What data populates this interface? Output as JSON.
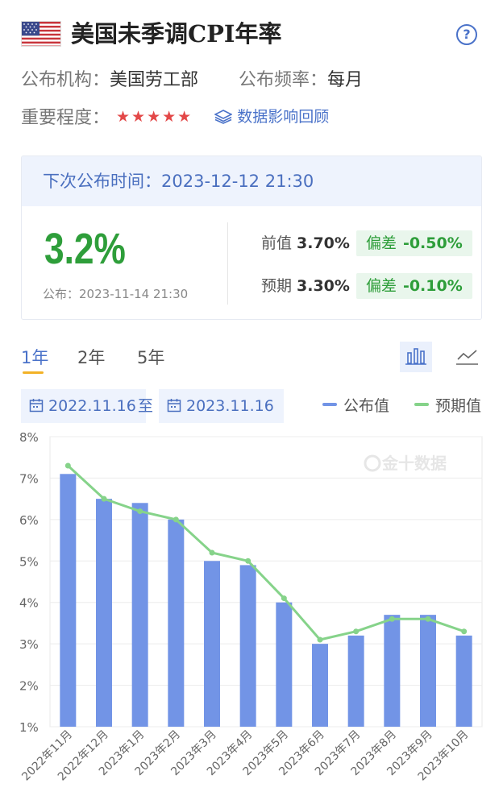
{
  "header": {
    "title": "美国未季调CPI年率",
    "help_icon": "question-circle-icon",
    "flag_icon": "us-flag-icon"
  },
  "info": {
    "publisher_label": "公布机构：",
    "publisher_value": "美国劳工部",
    "frequency_label": "公布频率：",
    "frequency_value": "每月",
    "importance_label": "重要程度：",
    "importance_stars": 5,
    "stars_text": "★★★★★",
    "review_link": "数据影响回顾"
  },
  "card": {
    "next_release_label": "下次公布时间：",
    "next_release_time": "2023-12-12 21:30",
    "actual": "3.2%",
    "published_label": "公布：",
    "published_time": "2023-11-14 21:30",
    "previous_label": "前值",
    "previous_value": "3.70%",
    "forecast_label": "预期",
    "forecast_value": "3.30%",
    "deviation_label": "偏差",
    "deviation_previous": "-0.50%",
    "deviation_forecast": "-0.10%"
  },
  "tabs": [
    {
      "label": "1年",
      "active": true
    },
    {
      "label": "2年",
      "active": false
    },
    {
      "label": "5年",
      "active": false
    }
  ],
  "tools": {
    "bar_icon": "bar-chart-icon",
    "line_icon": "line-chart-icon"
  },
  "range": {
    "start": "2022.11.16",
    "separator": "至",
    "end": "2023.11.16"
  },
  "legend": {
    "actual": "公布值",
    "forecast": "预期值"
  },
  "colors": {
    "bar": "#7294e6",
    "line": "#86d38a",
    "accent": "#4a72c9",
    "positive": "#2e9e3a",
    "star": "#e34848"
  },
  "watermark": "金十数据",
  "chart_data": {
    "type": "bar",
    "categories": [
      "2022年11月",
      "2022年12月",
      "2023年1月",
      "2023年2月",
      "2023年3月",
      "2023年4月",
      "2023年5月",
      "2023年6月",
      "2023年7月",
      "2023年8月",
      "2023年9月",
      "2023年10月"
    ],
    "series": [
      {
        "name": "公布值",
        "type": "bar",
        "values": [
          7.1,
          6.5,
          6.4,
          6.0,
          5.0,
          4.9,
          4.0,
          3.0,
          3.2,
          3.7,
          3.7,
          3.2
        ]
      },
      {
        "name": "预期值",
        "type": "line",
        "values": [
          7.3,
          6.5,
          6.2,
          6.0,
          5.2,
          5.0,
          4.1,
          3.1,
          3.3,
          3.6,
          3.6,
          3.3
        ]
      }
    ],
    "ylim": [
      1,
      8
    ],
    "yticks": [
      "1%",
      "2%",
      "3%",
      "4%",
      "5%",
      "6%",
      "7%",
      "8%"
    ],
    "grid": true,
    "legend_position": "top-right"
  }
}
